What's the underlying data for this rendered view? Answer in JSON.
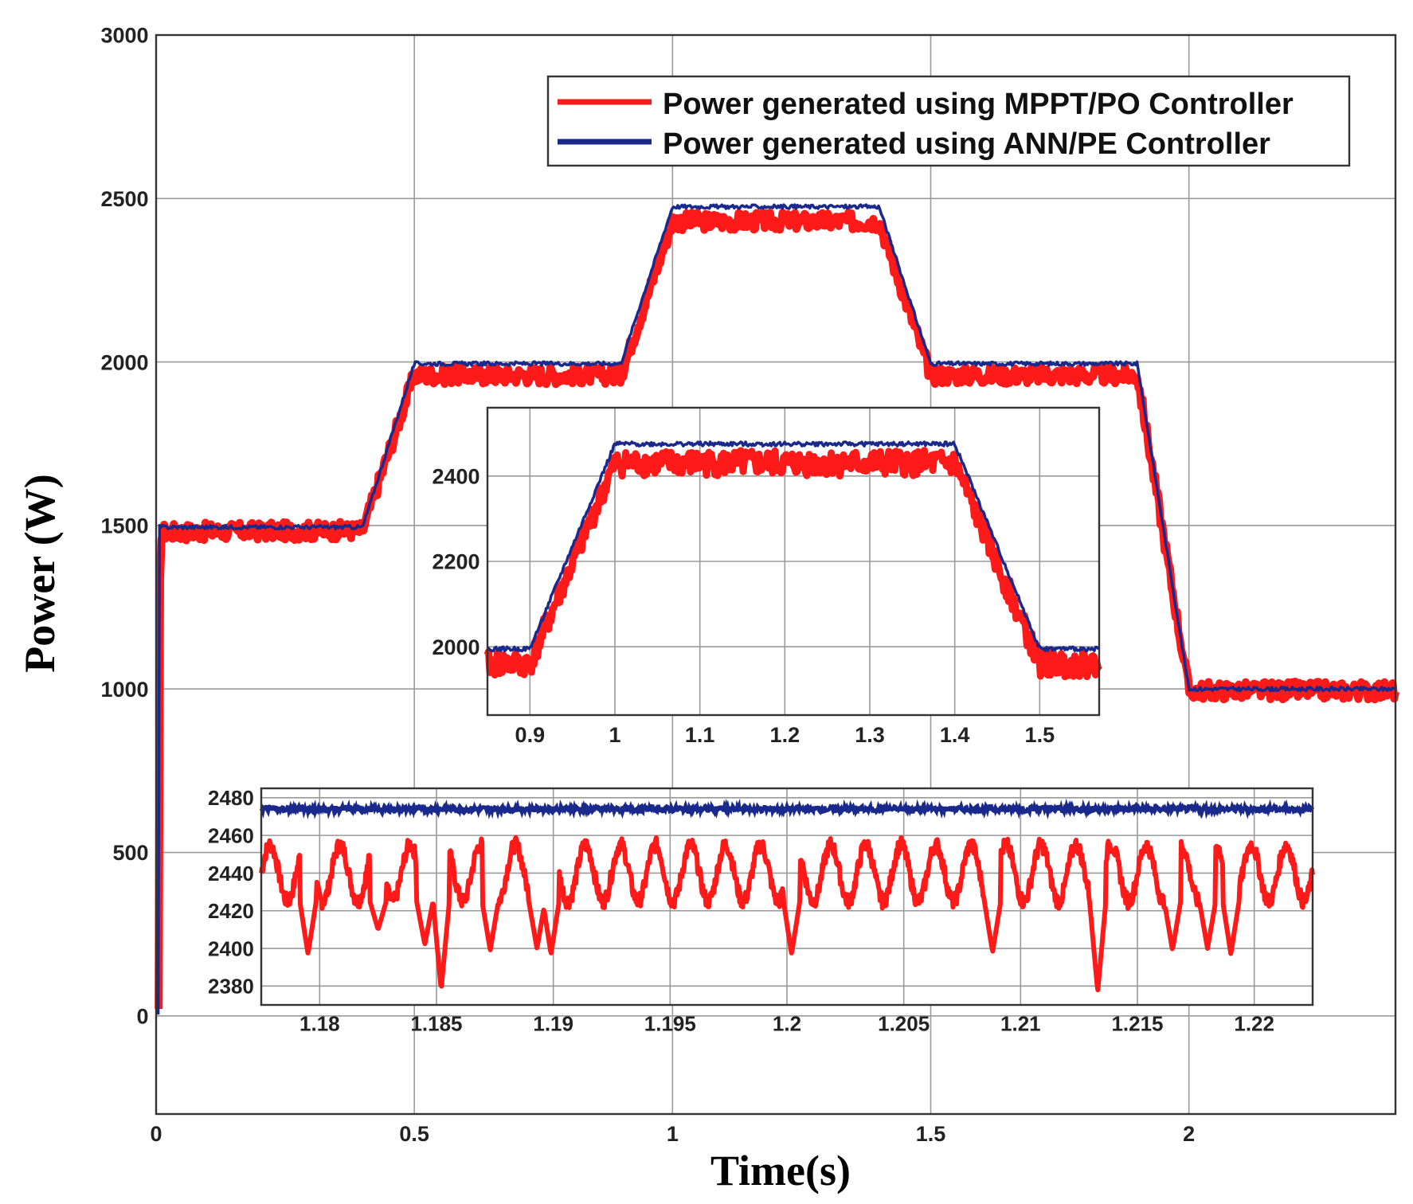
{
  "chart_data": [
    {
      "type": "line",
      "name": "main",
      "xlabel": "Time(s)",
      "ylabel": "Power (W)",
      "xlim": [
        0,
        2.4
      ],
      "ylim": [
        -300,
        3000
      ],
      "xticks": [
        0,
        0.5,
        1,
        1.5,
        2
      ],
      "xtick_labels": [
        "0",
        "0.5",
        "1",
        "1.5",
        "2"
      ],
      "yticks": [
        0,
        500,
        1000,
        1500,
        2000,
        2500,
        3000
      ],
      "ytick_labels": [
        "0",
        "500",
        "1000",
        "1500",
        "2000",
        "2500",
        "3000"
      ],
      "grid": true,
      "legend": "top-right",
      "series": [
        {
          "name": "Power generated using MPPT/PO Controller",
          "color": "#ff1a1a",
          "points": [
            [
              0.005,
              0
            ],
            [
              0.008,
              1480
            ],
            [
              0.4,
              1485
            ],
            [
              0.5,
              1960
            ],
            [
              0.9,
              1960
            ],
            [
              1.0,
              2430
            ],
            [
              1.4,
              2430
            ],
            [
              1.5,
              1960
            ],
            [
              1.9,
              1960
            ],
            [
              2.0,
              995
            ],
            [
              2.4,
              995
            ]
          ]
        },
        {
          "name": "Power generated using ANN/PE Controller",
          "color": "#1a2a8c",
          "points": [
            [
              0.004,
              0
            ],
            [
              0.006,
              1495
            ],
            [
              0.4,
              1495
            ],
            [
              0.5,
              1995
            ],
            [
              0.9,
              1995
            ],
            [
              1.0,
              2475
            ],
            [
              1.4,
              2475
            ],
            [
              1.5,
              1995
            ],
            [
              1.9,
              1995
            ],
            [
              2.0,
              1000
            ],
            [
              2.4,
              1000
            ]
          ]
        }
      ]
    },
    {
      "type": "line",
      "name": "inset-1",
      "xlim": [
        0.85,
        1.57
      ],
      "ylim": [
        1840,
        2560
      ],
      "xticks": [
        0.9,
        1,
        1.1,
        1.2,
        1.3,
        1.4,
        1.5
      ],
      "xtick_labels": [
        "0.9",
        "1",
        "1.1",
        "1.2",
        "1.3",
        "1.4",
        "1.5"
      ],
      "yticks": [
        2000,
        2200,
        2400
      ],
      "ytick_labels": [
        "2000",
        "2200",
        "2400"
      ],
      "grid": true,
      "series": [
        {
          "name": "MPPT/PO",
          "color": "#ff1a1a",
          "points": [
            [
              0.85,
              1960
            ],
            [
              0.9,
              1960
            ],
            [
              1.0,
              2430
            ],
            [
              1.4,
              2430
            ],
            [
              1.5,
              1960
            ],
            [
              1.57,
              1960
            ]
          ]
        },
        {
          "name": "ANN/PE",
          "color": "#1a2a8c",
          "points": [
            [
              0.85,
              1995
            ],
            [
              0.9,
              1995
            ],
            [
              1.0,
              2475
            ],
            [
              1.4,
              2475
            ],
            [
              1.5,
              1995
            ],
            [
              1.57,
              1995
            ]
          ]
        }
      ]
    },
    {
      "type": "line",
      "name": "inset-2",
      "xlim": [
        1.1775,
        1.2225
      ],
      "ylim": [
        2370,
        2485
      ],
      "xticks": [
        1.18,
        1.185,
        1.19,
        1.195,
        1.2,
        1.205,
        1.21,
        1.215,
        1.22
      ],
      "xtick_labels": [
        "1.18",
        "1.185",
        "1.19",
        "1.195",
        "1.2",
        "1.205",
        "1.21",
        "1.215",
        "1.22"
      ],
      "yticks": [
        2380,
        2400,
        2420,
        2440,
        2460,
        2480
      ],
      "ytick_labels": [
        "2380",
        "2400",
        "2420",
        "2440",
        "2460",
        "2480"
      ],
      "grid": true,
      "series": [
        {
          "name": "MPPT/PO",
          "color": "#ff1a1a",
          "oscillation": {
            "baseline": 2440,
            "high": 2455,
            "low": 2425,
            "period_s": 0.0015
          },
          "dips": [
            {
              "x": 1.1795,
              "y": 2397
            },
            {
              "x": 1.1825,
              "y": 2410
            },
            {
              "x": 1.1845,
              "y": 2402
            },
            {
              "x": 1.1852,
              "y": 2378
            },
            {
              "x": 1.1873,
              "y": 2399
            },
            {
              "x": 1.1893,
              "y": 2400
            },
            {
              "x": 1.1899,
              "y": 2397
            },
            {
              "x": 1.2002,
              "y": 2397
            },
            {
              "x": 1.2088,
              "y": 2398
            },
            {
              "x": 1.2133,
              "y": 2377
            },
            {
              "x": 1.2165,
              "y": 2399
            },
            {
              "x": 1.218,
              "y": 2400
            },
            {
              "x": 1.219,
              "y": 2397
            }
          ]
        },
        {
          "name": "ANN/PE",
          "color": "#1a2a8c",
          "constant": 2474
        }
      ]
    }
  ]
}
